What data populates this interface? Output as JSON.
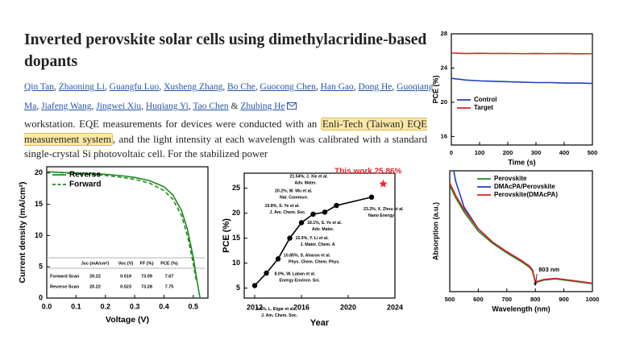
{
  "header": {
    "title": "Inverted perovskite solar cells using dimethylacridine-based dopants"
  },
  "authors": [
    "Qin Tan",
    "Zhaoning Li",
    "Guangfu Luo",
    "Xusheng Zhang",
    "Bo Che",
    "Guocong Chen",
    "Han Gao",
    "Dong He",
    "Guoqiang Ma",
    "Jiafeng Wang",
    "Jingwei Xiu",
    "Huqiang Yi",
    "Tao Chen",
    "Zhubing He"
  ],
  "authors_separator": ",",
  "authors_joiner": "&",
  "excerpt": {
    "before": "workstation. EQE measurements for devices were conducted with an ",
    "highlight": "Enli-Tech (Taiwan) EQE measurement system",
    "after": ", and the light intensity at each wavelength was calibrated with a standard single-crystal Si photovoltaic cell. For the stabilized power"
  },
  "chart_data": [
    {
      "type": "line",
      "x_label": "Voltage (V)",
      "y_label": "Current density (mA/cm²)",
      "x": [
        0,
        0.05,
        0.1,
        0.15,
        0.2,
        0.25,
        0.3,
        0.35,
        0.4,
        0.43,
        0.46,
        0.48,
        0.5,
        0.51,
        0.523
      ],
      "series": [
        {
          "name": "Reverse",
          "color": "#1f8a1f",
          "linestyle": "solid",
          "values": [
            20.22,
            20.1,
            20.0,
            19.9,
            19.8,
            19.6,
            19.3,
            18.8,
            17.8,
            16.5,
            14,
            11,
            6.5,
            3.5,
            0
          ]
        },
        {
          "name": "Forward",
          "color": "#1f8a1f",
          "linestyle": "dashed",
          "values": [
            20.22,
            20.05,
            19.9,
            19.75,
            19.6,
            19.35,
            19.0,
            18.4,
            17.2,
            15.8,
            13.2,
            10,
            5.5,
            2.8,
            null
          ]
        }
      ],
      "xlim": [
        0,
        0.55
      ],
      "xticks": [
        {
          "value": 0,
          "label": "0.0"
        },
        0.1,
        0.2,
        0.3,
        0.4,
        0.5
      ],
      "ylim": [
        0,
        21
      ],
      "yticks": [
        0,
        5,
        10,
        15,
        20
      ],
      "legend": "upper left",
      "table": {
        "columns": [
          "Jsc (mA/cm²)",
          "Voc (V)",
          "FF (%)",
          "PCE (%)"
        ],
        "rows": [
          {
            "label": "Forward Scan",
            "values": [
              20.22,
              0.519,
              73.09,
              7.67
            ]
          },
          {
            "label": "Reverse Scan",
            "values": [
              20.22,
              0.523,
              73.28,
              7.75
            ]
          }
        ]
      }
    },
    {
      "type": "scatter",
      "x_label": "Year",
      "y_label": "PCE (%)",
      "line": true,
      "x": [
        2012,
        2013,
        2014,
        2015,
        2016,
        2017,
        2018,
        2019,
        2022
      ],
      "series": [
        {
          "color": "#000000",
          "values": [
            5.5,
            8.0,
            10.85,
            15.0,
            18.1,
            19.8,
            20.2,
            21.54,
            23.2
          ]
        }
      ],
      "point_labels": [
        [
          "5.5%, L. Etgar et al.",
          "J. Am. Chem. Soc."
        ],
        [
          "8.0%, W. Laban et al.",
          "Energy Environ. Sci."
        ],
        [
          "10.85%, S. Aharon et al.",
          "Phys. Chem. Chem. Phys."
        ],
        [
          "15.0%, Y. Li et al.",
          "J. Mater. Chem. A"
        ],
        [
          "18.1%, S. Ye et al.",
          "Adv. Mater."
        ],
        [
          "19.8%, S. Ye et al.",
          "J. Am. Chem. Soc."
        ],
        [
          "20.2%, W. Wu et al.",
          "Nat. Commun."
        ],
        [
          "21.54%, J. Xie et al.",
          "Adv. Mater."
        ],
        [
          "23.2%, X. Zhou et al.",
          "Nano Energy"
        ]
      ],
      "highlight": {
        "label": "This work 25.86%",
        "x": 2023,
        "y": 25.86,
        "color": "#e8262b"
      },
      "xlim": [
        2011.1,
        2024
      ],
      "xticks": [
        2012,
        2016,
        2020,
        2024
      ],
      "ylim": [
        3,
        28
      ],
      "yticks": [
        5,
        10,
        15,
        20,
        25
      ]
    },
    {
      "type": "line",
      "x_label": "Time (s)",
      "y_label": "PCE (%)",
      "x": [
        0,
        50,
        100,
        150,
        200,
        250,
        300,
        350,
        400,
        450,
        500
      ],
      "series": [
        {
          "name": "Control",
          "color": "#1f3fbf",
          "linestyle": "solid",
          "values": [
            22.8,
            22.6,
            22.5,
            22.45,
            22.4,
            22.35,
            22.3,
            22.3,
            22.25,
            22.25,
            22.2
          ]
        },
        {
          "name": "Target",
          "color": "#e02020",
          "linestyle": "solid",
          "values": [
            25.75,
            25.7,
            25.72,
            25.7,
            25.7,
            25.68,
            25.7,
            25.68,
            25.7,
            25.66,
            25.68
          ]
        }
      ],
      "xlim": [
        0,
        500
      ],
      "xticks": [
        0,
        100,
        200,
        300,
        400,
        500
      ],
      "ylim": [
        15,
        28
      ],
      "yticks": [
        16,
        20,
        24,
        28
      ],
      "legend": "lower left"
    },
    {
      "type": "line",
      "x_label": "Wavelength (nm)",
      "y_label": "Absorption (a.u.)",
      "x": [
        500,
        520,
        550,
        600,
        650,
        700,
        750,
        780,
        790,
        800,
        830,
        870,
        920,
        1000
      ],
      "series": [
        {
          "name": "Perovskite",
          "color": "#1f8a1f",
          "linestyle": "solid",
          "values": [
            0.88,
            0.78,
            0.66,
            0.5,
            0.4,
            0.32,
            0.25,
            0.2,
            0.17,
            0.075,
            0.095,
            0.105,
            0.09,
            0.065
          ]
        },
        {
          "name": "DMAcPA/Perovskite",
          "color": "#1f3fbf",
          "linestyle": "solid",
          "values": [
            1.2,
            0.92,
            0.7,
            0.52,
            0.41,
            0.33,
            0.26,
            0.21,
            0.18,
            0.08,
            0.1,
            0.11,
            0.095,
            0.07
          ]
        },
        {
          "name": "Perovskite(DMAcPA)",
          "color": "#e02020",
          "linestyle": "solid",
          "values": [
            0.9,
            0.8,
            0.68,
            0.52,
            0.41,
            0.33,
            0.26,
            0.21,
            0.18,
            0.08,
            0.1,
            0.11,
            0.095,
            0.07
          ]
        }
      ],
      "annotation": {
        "text": "803 nm",
        "x": 803
      },
      "xlim": [
        500,
        1000
      ],
      "xticks": [
        500,
        600,
        700,
        800,
        900,
        1000
      ],
      "ylim": [
        0,
        1
      ],
      "legend": "upper right"
    }
  ]
}
